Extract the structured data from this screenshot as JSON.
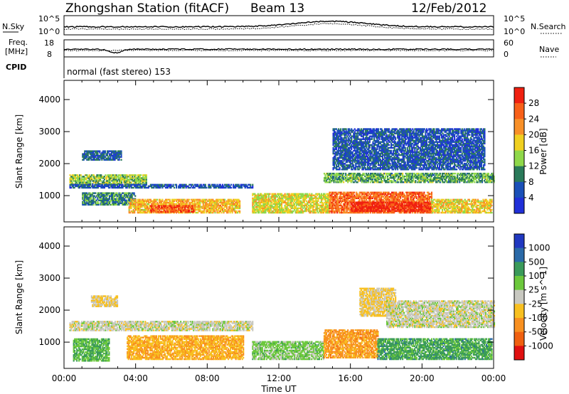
{
  "header": {
    "station": "Zhongshan Station (fitACF)",
    "beam": "Beam 13",
    "date": "12/Feb/2012"
  },
  "sky_panel": {
    "left_label": "N.Sky",
    "right_label": "N.Search",
    "left_ticks": [
      "10^5",
      "10^0"
    ],
    "right_ticks": [
      "10^5",
      "10^0"
    ]
  },
  "freq_panel": {
    "left_label_line1": "Freq.",
    "left_label_line2": "[MHz]",
    "right_label": "Nave",
    "left_ticks": [
      "18",
      "8"
    ],
    "right_ticks": [
      "60",
      "0"
    ]
  },
  "cpid_panel": {
    "label": "CPID",
    "text": "normal (fast stereo) 153"
  },
  "chart_data": [
    {
      "type": "heatmap",
      "title": "",
      "xlabel": "",
      "ylabel": "Slant Range [km]",
      "xlim_hours": [
        0,
        24
      ],
      "ylim_km": [
        180,
        4600
      ],
      "y_ticks": [
        "4000",
        "3000",
        "2000",
        "1000"
      ],
      "colorbar_label": "Power [dB]",
      "colorbar_ticks": [
        "28",
        "24",
        "20",
        "16",
        "12",
        "8",
        "4"
      ],
      "colorbar_colors": [
        "#2030d8",
        "#1a50b8",
        "#2a7a5a",
        "#8fd84a",
        "#f0d020",
        "#f89028",
        "#f86018",
        "#f02010"
      ],
      "colorbar_range": [
        0,
        32
      ],
      "echo_bands": [
        {
          "t0": 0.3,
          "t1": 4.6,
          "r0": 1350,
          "r1": 1650,
          "level": 14
        },
        {
          "t0": 0.3,
          "t1": 10.5,
          "r0": 1230,
          "r1": 1350,
          "level": 6
        },
        {
          "t0": 1.0,
          "t1": 3.2,
          "r0": 2100,
          "r1": 2400,
          "level": 7
        },
        {
          "t0": 1.0,
          "t1": 4.0,
          "r0": 700,
          "r1": 1100,
          "level": 10
        },
        {
          "t0": 3.6,
          "t1": 9.8,
          "r0": 450,
          "r1": 900,
          "level": 20
        },
        {
          "t0": 4.8,
          "t1": 7.2,
          "r0": 480,
          "r1": 700,
          "level": 27
        },
        {
          "t0": 10.5,
          "t1": 14.8,
          "r0": 450,
          "r1": 1050,
          "level": 17
        },
        {
          "t0": 14.8,
          "t1": 20.5,
          "r0": 450,
          "r1": 1100,
          "level": 25
        },
        {
          "t0": 16.0,
          "t1": 20.5,
          "r0": 500,
          "r1": 800,
          "level": 30
        },
        {
          "t0": 20.5,
          "t1": 23.9,
          "r0": 450,
          "r1": 900,
          "level": 18
        },
        {
          "t0": 14.5,
          "t1": 24.0,
          "r0": 1400,
          "r1": 1700,
          "level": 12
        },
        {
          "t0": 15.0,
          "t1": 23.5,
          "r0": 1800,
          "r1": 3100,
          "level": 6
        }
      ]
    },
    {
      "type": "heatmap",
      "title": "",
      "xlabel": "Time UT",
      "ylabel": "Slant Range [km]",
      "xlim_hours": [
        0,
        24
      ],
      "ylim_km": [
        180,
        4600
      ],
      "x_ticks": [
        "00:00",
        "04:00",
        "08:00",
        "12:00",
        "16:00",
        "20:00",
        "00:00"
      ],
      "y_ticks": [
        "4000",
        "3000",
        "2000",
        "1000"
      ],
      "colorbar_label": "Velocity [m s^-1]",
      "colorbar_ticks": [
        "1000",
        "500",
        "100",
        "25",
        "-25",
        "-100",
        "-500",
        "-1000"
      ],
      "colorbar_colors": [
        "#2038c0",
        "#2a6aa8",
        "#3a9a5a",
        "#6cc83c",
        "#c8c8c0",
        "#f8c020",
        "#f89020",
        "#f06010",
        "#e01010"
      ],
      "colorbar_range": [
        -1000,
        1000
      ],
      "echo_bands": [
        {
          "t0": 0.3,
          "t1": 10.5,
          "r0": 1350,
          "r1": 1650,
          "level": 0
        },
        {
          "t0": 1.5,
          "t1": 3.0,
          "r0": 2100,
          "r1": 2450,
          "level": -150
        },
        {
          "t0": 0.5,
          "t1": 2.5,
          "r0": 400,
          "r1": 1100,
          "level": 300
        },
        {
          "t0": 3.5,
          "t1": 10.0,
          "r0": 450,
          "r1": 1200,
          "level": -300
        },
        {
          "t0": 10.5,
          "t1": 14.5,
          "r0": 450,
          "r1": 1000,
          "level": 200
        },
        {
          "t0": 14.5,
          "t1": 17.5,
          "r0": 500,
          "r1": 1400,
          "level": -400
        },
        {
          "t0": 16.5,
          "t1": 18.5,
          "r0": 1800,
          "r1": 2700,
          "level": -150
        },
        {
          "t0": 17.5,
          "t1": 23.9,
          "r0": 450,
          "r1": 1100,
          "level": 400
        },
        {
          "t0": 18.0,
          "t1": 24.0,
          "r0": 1450,
          "r1": 2300,
          "level": 0
        }
      ]
    }
  ]
}
